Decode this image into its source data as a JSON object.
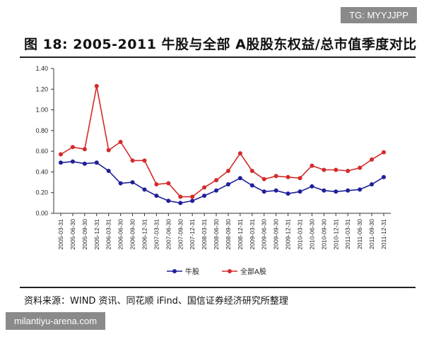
{
  "watermark_top": "TG: MYYJJPP",
  "watermark_bottom": "milantiyu-arena.com",
  "figure_title": "图 18: 2005-2011 牛股与全部 A股股东权益/总市值季度对比",
  "source_note": "资料来源：WIND 资讯、同花顺 iFind、国信证券经济研究所整理",
  "colors": {
    "bull": "#1f1f9a",
    "all_a": "#d42a2a"
  },
  "chart_data": {
    "type": "line",
    "title": "",
    "xlabel": "",
    "ylabel": "",
    "ylim": [
      0,
      1.4
    ],
    "yticks": [
      "0.00",
      "0.20",
      "0.40",
      "0.60",
      "0.80",
      "1.00",
      "1.20",
      "1.40"
    ],
    "grid": false,
    "legend_position": "bottom",
    "categories": [
      "2005-03-31",
      "2005-06-30",
      "2005-09-30",
      "2005-12-31",
      "2006-03-31",
      "2006-06-30",
      "2006-09-30",
      "2006-12-31",
      "2007-03-31",
      "2007-06-30",
      "2007-09-30",
      "2007-12-31",
      "2008-03-31",
      "2008-06-30",
      "2008-09-30",
      "2008-12-31",
      "2009-03-31",
      "2009-06-30",
      "2009-09-30",
      "2009-12-31",
      "2010-03-31",
      "2010-06-30",
      "2010-09-30",
      "2010-12-31",
      "2011-03-31",
      "2011-06-30",
      "2011-09-30",
      "2011-12-31"
    ],
    "series": [
      {
        "name": "牛股",
        "color": "#1f1f9a",
        "values": [
          0.49,
          0.5,
          0.48,
          0.49,
          0.41,
          0.29,
          0.3,
          0.23,
          0.17,
          0.12,
          0.1,
          0.12,
          0.17,
          0.22,
          0.28,
          0.34,
          0.27,
          0.21,
          0.22,
          0.19,
          0.21,
          0.26,
          0.22,
          0.21,
          0.22,
          0.23,
          0.28,
          0.35
        ]
      },
      {
        "name": "全部A股",
        "color": "#d42a2a",
        "values": [
          0.57,
          0.64,
          0.62,
          1.23,
          0.61,
          0.69,
          0.51,
          0.51,
          0.28,
          0.29,
          0.16,
          0.16,
          0.25,
          0.32,
          0.41,
          0.58,
          0.41,
          0.33,
          0.36,
          0.35,
          0.34,
          0.46,
          0.42,
          0.42,
          0.41,
          0.44,
          0.52,
          0.59
        ]
      }
    ]
  }
}
